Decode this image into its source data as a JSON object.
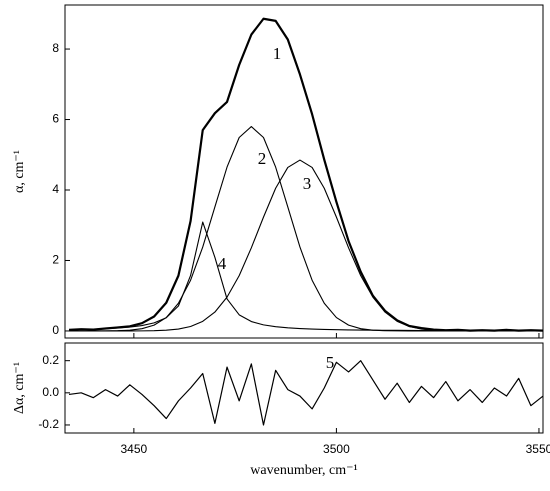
{
  "chart_data": [
    {
      "type": "line",
      "ylabel": "α, cm⁻¹",
      "x": [
        3434,
        3437,
        3440,
        3443,
        3446,
        3449,
        3452,
        3455,
        3458,
        3461,
        3464,
        3467,
        3470,
        3473,
        3476,
        3479,
        3482,
        3485,
        3488,
        3491,
        3494,
        3497,
        3500,
        3503,
        3506,
        3509,
        3512,
        3515,
        3518,
        3521,
        3524,
        3527,
        3530,
        3533,
        3536,
        3539,
        3542,
        3545,
        3548,
        3551
      ],
      "xlim": [
        3433,
        3551
      ],
      "ylim": [
        -0.2,
        9.25
      ],
      "yticks": [
        0,
        2,
        4,
        6,
        8
      ],
      "series": [
        {
          "color": "#000000",
          "linewidth": 2.2,
          "values": [
            0.03,
            0.05,
            0.04,
            0.07,
            0.1,
            0.13,
            0.22,
            0.41,
            0.8,
            1.57,
            3.12,
            5.7,
            6.18,
            6.5,
            7.55,
            8.41,
            8.86,
            8.8,
            8.27,
            7.28,
            6.15,
            4.86,
            3.66,
            2.55,
            1.68,
            1.0,
            0.57,
            0.3,
            0.14,
            0.08,
            0.04,
            0.02,
            0.03,
            0.01,
            0.02,
            0.01,
            0.03,
            0.01,
            0.02,
            0.01
          ]
        },
        {
          "color": "#000000",
          "linewidth": 1.1,
          "values": [
            0,
            0,
            0,
            0.002,
            0.007,
            0.022,
            0.064,
            0.165,
            0.38,
            0.785,
            1.44,
            2.38,
            3.52,
            4.65,
            5.49,
            5.8,
            5.49,
            4.65,
            3.52,
            2.38,
            1.44,
            0.785,
            0.38,
            0.165,
            0.064,
            0.022,
            0.007,
            0.002,
            0,
            0,
            0,
            0,
            0,
            0,
            0,
            0,
            0,
            0,
            0,
            0
          ]
        },
        {
          "color": "#000000",
          "linewidth": 1.1,
          "values": [
            0,
            0,
            0,
            0,
            0,
            0,
            0.002,
            0.007,
            0.021,
            0.054,
            0.127,
            0.272,
            0.535,
            0.96,
            1.57,
            2.36,
            3.23,
            4.05,
            4.64,
            4.85,
            4.64,
            4.05,
            3.23,
            2.36,
            1.57,
            0.96,
            0.535,
            0.272,
            0.127,
            0.054,
            0.021,
            0.007,
            0.002,
            0,
            0,
            0,
            0,
            0,
            0,
            0
          ]
        },
        {
          "color": "#000000",
          "linewidth": 1.1,
          "values": [
            0.034,
            0.041,
            0.05,
            0.063,
            0.081,
            0.109,
            0.153,
            0.229,
            0.376,
            0.708,
            1.575,
            3.09,
            2.09,
            0.908,
            0.457,
            0.267,
            0.173,
            0.121,
            0.089,
            0.068,
            0.054,
            0.044,
            0.036,
            0.03,
            0.026,
            0.022,
            0.019,
            0.017,
            0.015,
            0.013,
            0.012,
            0.011,
            0.01,
            0.009,
            0.008,
            0.008,
            0.007,
            0.006,
            0.006,
            0.006
          ]
        }
      ],
      "annotations": [
        "1",
        "2",
        "3",
        "4"
      ]
    },
    {
      "type": "line",
      "ylabel": "Δα, cm⁻¹",
      "xlabel": "wavenumber, cm⁻¹",
      "x": [
        3434,
        3437,
        3440,
        3443,
        3446,
        3449,
        3452,
        3455,
        3458,
        3461,
        3464,
        3467,
        3470,
        3473,
        3476,
        3479,
        3482,
        3485,
        3488,
        3491,
        3494,
        3497,
        3500,
        3503,
        3506,
        3509,
        3512,
        3515,
        3518,
        3521,
        3524,
        3527,
        3530,
        3533,
        3536,
        3539,
        3542,
        3545,
        3548,
        3551
      ],
      "xlim": [
        3433,
        3551
      ],
      "xticks": [
        3450,
        3500,
        3550
      ],
      "ylim": [
        -0.25,
        0.31
      ],
      "yticks": [
        0.2,
        {
          "value": 0.0,
          "label": "0.0"
        },
        -0.2
      ],
      "series": [
        {
          "color": "#000000",
          "linewidth": 1.2,
          "values": [
            -0.01,
            0.0,
            -0.03,
            0.02,
            -0.02,
            0.05,
            -0.01,
            -0.08,
            -0.16,
            -0.05,
            0.03,
            0.12,
            -0.19,
            0.16,
            -0.05,
            0.18,
            -0.2,
            0.14,
            0.02,
            -0.02,
            -0.1,
            0.03,
            0.19,
            0.13,
            0.2,
            0.08,
            -0.04,
            0.06,
            -0.06,
            0.04,
            -0.03,
            0.07,
            -0.05,
            0.02,
            -0.06,
            0.03,
            -0.02,
            0.09,
            -0.08,
            -0.02
          ]
        }
      ],
      "annotations": [
        "5"
      ]
    }
  ]
}
